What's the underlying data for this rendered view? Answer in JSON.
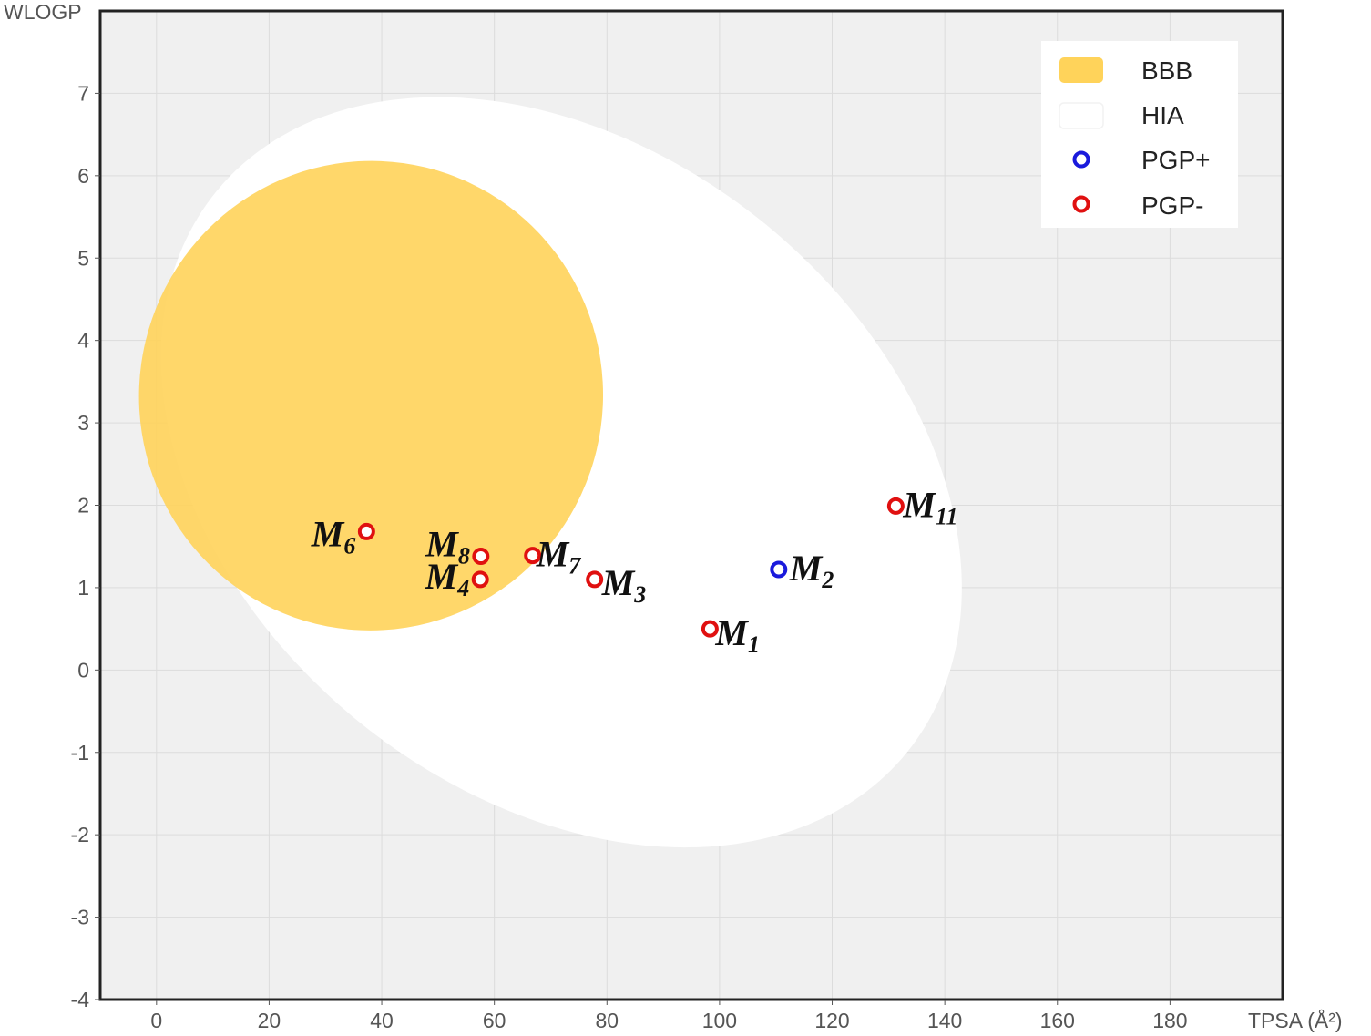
{
  "chart_data": {
    "type": "scatter",
    "title": "",
    "xlabel": "TPSA (Å²)",
    "ylabel": "WLOGP",
    "xlim": [
      -10,
      200
    ],
    "ylim": [
      -4,
      8
    ],
    "x_ticks": [
      "0",
      "20",
      "40",
      "60",
      "80",
      "100",
      "120",
      "140",
      "160",
      "180"
    ],
    "y_ticks": [
      "-4",
      "-3",
      "-2",
      "-1",
      "0",
      "1",
      "2",
      "3",
      "4",
      "5",
      "6",
      "7"
    ],
    "grid": true,
    "legend_position": "top-right",
    "colors": {
      "plot_background": "#f0f0f0",
      "bbb": "#ffd35a",
      "hia": "#ffffff",
      "pgp_plus": "#1a1adc",
      "pgp_minus": "#e01010"
    },
    "regions": [
      {
        "name": "BBB",
        "center_x": 38.1,
        "center_y": 3.33,
        "tilt_deg": 8,
        "semi_axis_tpsa": 41.2,
        "semi_axis_wlogp": 2.85
      },
      {
        "name": "HIA",
        "center_x": 71.9,
        "center_y": 2.4,
        "tilt_deg": 39,
        "semi_axis_tpsa": 79.0,
        "semi_axis_wlogp": 3.9
      }
    ],
    "legend": [
      {
        "label": "BBB",
        "symbol": "bbb-swatch"
      },
      {
        "label": "HIA",
        "symbol": "hia-swatch"
      },
      {
        "label": "PGP+",
        "symbol": "pgp-plus-marker"
      },
      {
        "label": "PGP-",
        "symbol": "pgp-minus-marker"
      }
    ],
    "series": [
      {
        "name": "PGP+",
        "points": [
          {
            "label": "M",
            "sub": "2",
            "x": 110.5,
            "y": 1.22
          }
        ]
      },
      {
        "name": "PGP-",
        "points": [
          {
            "label": "M",
            "sub": "1",
            "x": 98.3,
            "y": 0.5
          },
          {
            "label": "M",
            "sub": "3",
            "x": 77.8,
            "y": 1.1
          },
          {
            "label": "M",
            "sub": "4",
            "x": 57.5,
            "y": 1.1
          },
          {
            "label": "M",
            "sub": "6",
            "x": 37.3,
            "y": 1.68
          },
          {
            "label": "M",
            "sub": "7",
            "x": 66.8,
            "y": 1.39
          },
          {
            "label": "M",
            "sub": "8",
            "x": 57.6,
            "y": 1.38
          },
          {
            "label": "M",
            "sub": "11",
            "x": 131.3,
            "y": 1.99
          }
        ]
      }
    ]
  }
}
